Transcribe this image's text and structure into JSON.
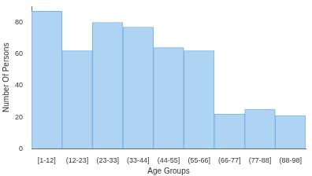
{
  "chart_data": {
    "type": "bar",
    "x_label": "Age Groups",
    "y_label": "Number Of Persons",
    "categories": [
      "[1-12]",
      "(12-23]",
      "(23-33]",
      "(33-44]",
      "(44-55]",
      "(55-66]",
      "(66-77]",
      "(77-88]",
      "(88-98]"
    ],
    "values": [
      87,
      62,
      80,
      77,
      64,
      62,
      22,
      25,
      21
    ],
    "color": "#aed3f3",
    "ylim": [
      0,
      90
    ],
    "yticks": [
      0,
      20,
      40,
      60,
      80
    ],
    "grid": false
  }
}
